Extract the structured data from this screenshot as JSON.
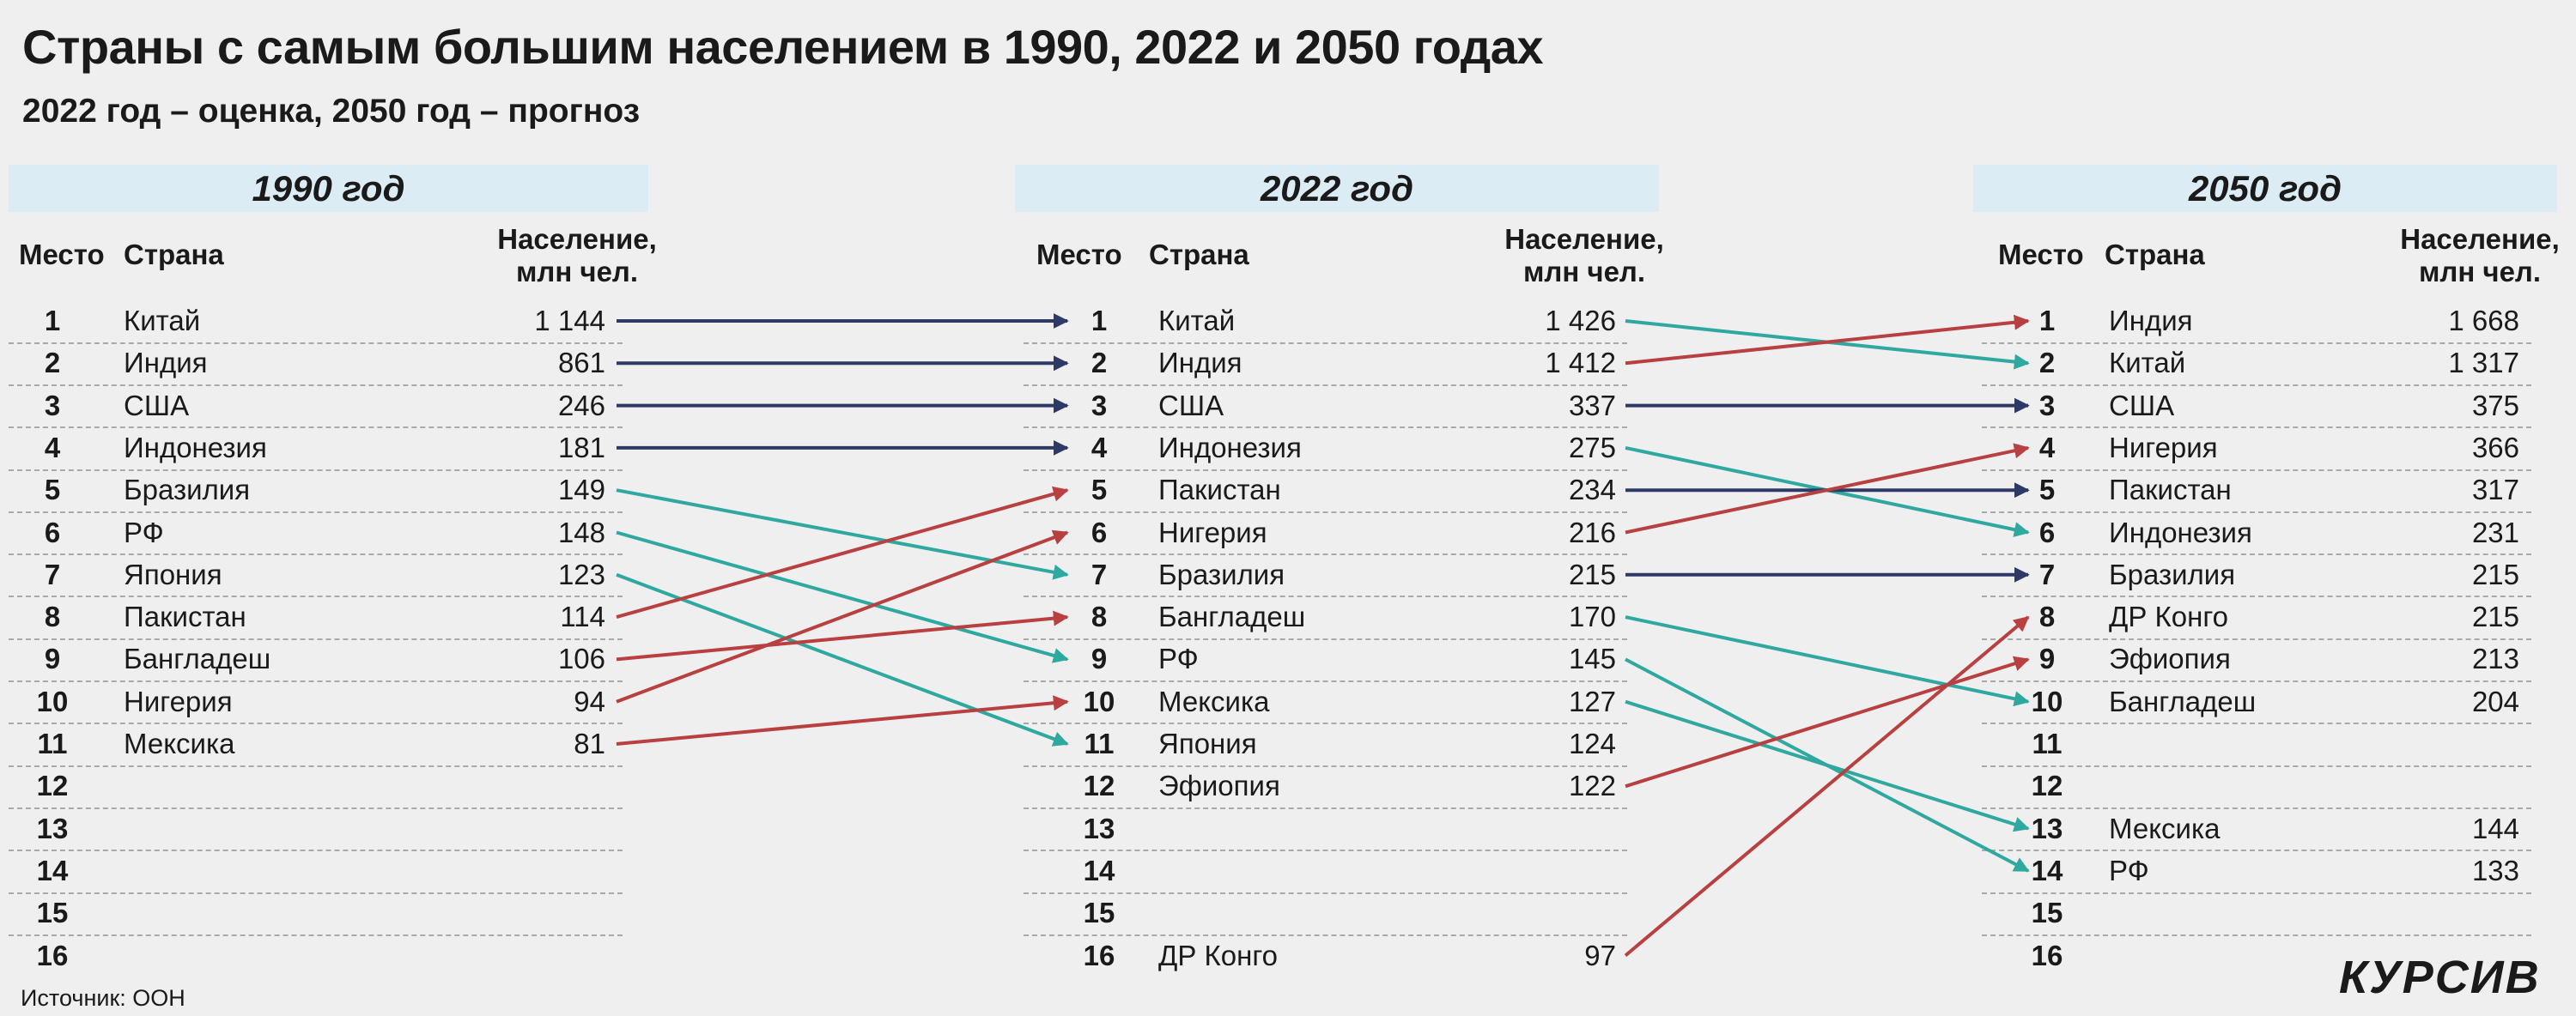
{
  "title": "Страны с самым большим населением в 1990, 2022 и 2050 годах",
  "subtitle": "2022 год – оценка, 2050 год – прогноз",
  "source": "Источник: ООН",
  "logo": "КУРСИВ",
  "headers": {
    "rank": "Место",
    "country": "Страна",
    "population_line1": "Население,",
    "population_line2": "млн чел."
  },
  "colors": {
    "kept": "#2e3a66",
    "dropped": "#2fa8a0",
    "rose": "#b84040",
    "band": "#dcecf5"
  },
  "chart_data": {
    "type": "table",
    "ranks": [
      1,
      2,
      3,
      4,
      5,
      6,
      7,
      8,
      9,
      10,
      11,
      12,
      13,
      14,
      15,
      16
    ],
    "years": [
      {
        "label": "1990 год",
        "rows": [
          {
            "rank": 1,
            "country": "Китай",
            "population": "1 144"
          },
          {
            "rank": 2,
            "country": "Индия",
            "population": "861"
          },
          {
            "rank": 3,
            "country": "США",
            "population": "246"
          },
          {
            "rank": 4,
            "country": "Индонезия",
            "population": "181"
          },
          {
            "rank": 5,
            "country": "Бразилия",
            "population": "149"
          },
          {
            "rank": 6,
            "country": "РФ",
            "population": "148"
          },
          {
            "rank": 7,
            "country": "Япония",
            "population": "123"
          },
          {
            "rank": 8,
            "country": "Пакистан",
            "population": "114"
          },
          {
            "rank": 9,
            "country": "Бангладеш",
            "population": "106"
          },
          {
            "rank": 10,
            "country": "Нигерия",
            "population": "94"
          },
          {
            "rank": 11,
            "country": "Мексика",
            "population": "81"
          }
        ]
      },
      {
        "label": "2022 год",
        "rows": [
          {
            "rank": 1,
            "country": "Китай",
            "population": "1 426"
          },
          {
            "rank": 2,
            "country": "Индия",
            "population": "1 412"
          },
          {
            "rank": 3,
            "country": "США",
            "population": "337"
          },
          {
            "rank": 4,
            "country": "Индонезия",
            "population": "275"
          },
          {
            "rank": 5,
            "country": "Пакистан",
            "population": "234"
          },
          {
            "rank": 6,
            "country": "Нигерия",
            "population": "216"
          },
          {
            "rank": 7,
            "country": "Бразилия",
            "population": "215"
          },
          {
            "rank": 8,
            "country": "Бангладеш",
            "population": "170"
          },
          {
            "rank": 9,
            "country": "РФ",
            "population": "145"
          },
          {
            "rank": 10,
            "country": "Мексика",
            "population": "127"
          },
          {
            "rank": 11,
            "country": "Япония",
            "population": "124"
          },
          {
            "rank": 12,
            "country": "Эфиопия",
            "population": "122"
          },
          {
            "rank": 16,
            "country": "ДР Конго",
            "population": "97"
          }
        ]
      },
      {
        "label": "2050 год",
        "rows": [
          {
            "rank": 1,
            "country": "Индия",
            "population": "1 668"
          },
          {
            "rank": 2,
            "country": "Китай",
            "population": "1 317"
          },
          {
            "rank": 3,
            "country": "США",
            "population": "375"
          },
          {
            "rank": 4,
            "country": "Нигерия",
            "population": "366"
          },
          {
            "rank": 5,
            "country": "Пакистан",
            "population": "317"
          },
          {
            "rank": 6,
            "country": "Индонезия",
            "population": "231"
          },
          {
            "rank": 7,
            "country": "Бразилия",
            "population": "215"
          },
          {
            "rank": 8,
            "country": "ДР Конго",
            "population": "215"
          },
          {
            "rank": 9,
            "country": "Эфиопия",
            "population": "213"
          },
          {
            "rank": 10,
            "country": "Бангладеш",
            "population": "204"
          },
          {
            "rank": 13,
            "country": "Мексика",
            "population": "144"
          },
          {
            "rank": 14,
            "country": "РФ",
            "population": "133"
          }
        ]
      }
    ],
    "transitions": [
      [
        {
          "from": 1,
          "to": 1,
          "trend": "kept"
        },
        {
          "from": 2,
          "to": 2,
          "trend": "kept"
        },
        {
          "from": 3,
          "to": 3,
          "trend": "kept"
        },
        {
          "from": 4,
          "to": 4,
          "trend": "kept"
        },
        {
          "from": 5,
          "to": 7,
          "trend": "dropped"
        },
        {
          "from": 6,
          "to": 9,
          "trend": "dropped"
        },
        {
          "from": 7,
          "to": 11,
          "trend": "dropped"
        },
        {
          "from": 8,
          "to": 5,
          "trend": "rose"
        },
        {
          "from": 9,
          "to": 8,
          "trend": "rose"
        },
        {
          "from": 10,
          "to": 6,
          "trend": "rose"
        },
        {
          "from": 11,
          "to": 10,
          "trend": "rose"
        }
      ],
      [
        {
          "from": 1,
          "to": 2,
          "trend": "dropped"
        },
        {
          "from": 2,
          "to": 1,
          "trend": "rose"
        },
        {
          "from": 3,
          "to": 3,
          "trend": "kept"
        },
        {
          "from": 4,
          "to": 6,
          "trend": "dropped"
        },
        {
          "from": 5,
          "to": 5,
          "trend": "kept"
        },
        {
          "from": 6,
          "to": 4,
          "trend": "rose"
        },
        {
          "from": 7,
          "to": 7,
          "trend": "kept"
        },
        {
          "from": 8,
          "to": 10,
          "trend": "dropped"
        },
        {
          "from": 9,
          "to": 14,
          "trend": "dropped"
        },
        {
          "from": 10,
          "to": 13,
          "trend": "dropped"
        },
        {
          "from": 12,
          "to": 9,
          "trend": "rose"
        },
        {
          "from": 16,
          "to": 8,
          "trend": "rose"
        }
      ]
    ]
  }
}
